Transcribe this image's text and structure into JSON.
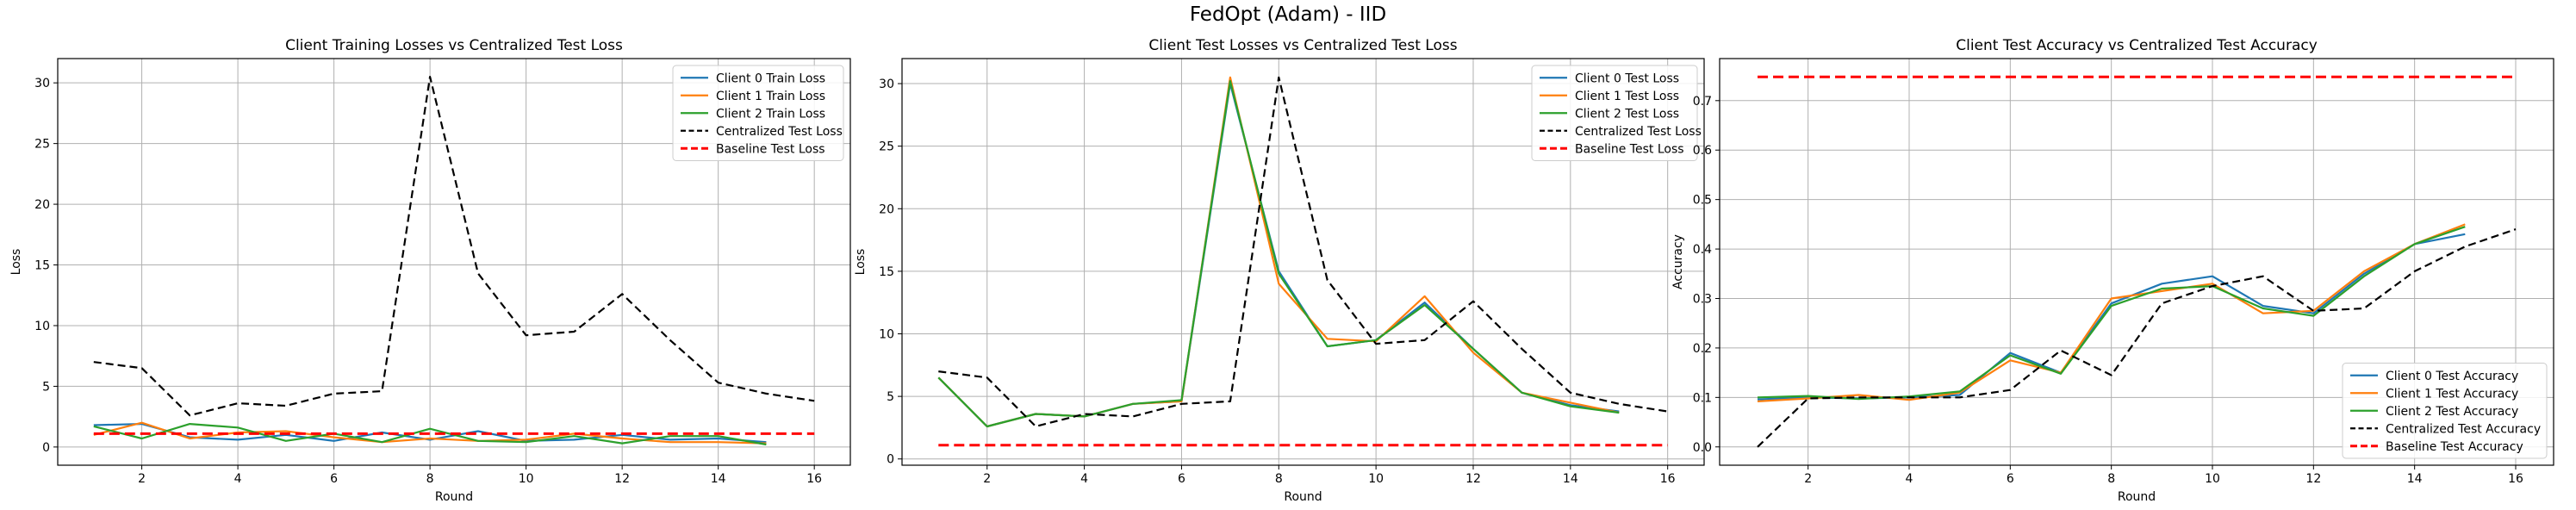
{
  "figure": {
    "suptitle": "FedOpt (Adam) - IID"
  },
  "chart_data": [
    {
      "type": "line",
      "title": "Client Training Losses vs Centralized Test Loss",
      "xlabel": "Round",
      "ylabel": "Loss",
      "xlim": [
        0.25,
        16.75
      ],
      "ylim": [
        -1.5,
        32
      ],
      "xticks": [
        2,
        4,
        6,
        8,
        10,
        12,
        14,
        16
      ],
      "yticks": [
        0,
        5,
        10,
        15,
        20,
        25,
        30
      ],
      "grid": true,
      "legend_position": "upper right",
      "series": [
        {
          "name": "Client 0 Train Loss",
          "color": "#1f77b4",
          "style": "solid",
          "x": [
            1,
            2,
            3,
            4,
            5,
            6,
            7,
            8,
            9,
            10,
            11,
            12,
            13,
            14,
            15
          ],
          "y": [
            1.8,
            1.9,
            0.8,
            0.6,
            1.0,
            0.5,
            1.2,
            0.6,
            1.3,
            0.5,
            0.6,
            1.0,
            0.6,
            0.7,
            0.4
          ]
        },
        {
          "name": "Client 1 Train Loss",
          "color": "#ff7f0e",
          "style": "solid",
          "x": [
            1,
            2,
            3,
            4,
            5,
            6,
            7,
            8,
            9,
            10,
            11,
            12,
            13,
            14,
            15
          ],
          "y": [
            1.0,
            2.0,
            0.7,
            1.2,
            1.3,
            0.8,
            0.4,
            0.7,
            0.5,
            0.6,
            1.1,
            0.7,
            0.4,
            0.4,
            0.3
          ]
        },
        {
          "name": "Client 2 Train Loss",
          "color": "#2ca02c",
          "style": "solid",
          "x": [
            1,
            2,
            3,
            4,
            5,
            6,
            7,
            8,
            9,
            10,
            11,
            12,
            13,
            14,
            15
          ],
          "y": [
            1.7,
            0.7,
            1.9,
            1.6,
            0.5,
            1.1,
            0.4,
            1.5,
            0.5,
            0.4,
            0.9,
            0.3,
            0.9,
            0.9,
            0.2
          ]
        },
        {
          "name": "Centralized Test Loss",
          "color": "#000000",
          "style": "dashed",
          "x": [
            1,
            2,
            3,
            4,
            5,
            6,
            7,
            8,
            9,
            10,
            11,
            12,
            13,
            14,
            15,
            16
          ],
          "y": [
            7.0,
            6.5,
            2.6,
            3.6,
            3.4,
            4.4,
            4.6,
            30.5,
            14.3,
            9.2,
            9.5,
            12.6,
            8.8,
            5.3,
            4.4,
            3.8
          ]
        },
        {
          "name": "Baseline Test Loss",
          "color": "#ff0000",
          "style": "dashed-bold",
          "x": [
            1,
            16
          ],
          "y": [
            1.1,
            1.1
          ]
        }
      ]
    },
    {
      "type": "line",
      "title": "Client Test Losses vs Centralized Test Loss",
      "xlabel": "Round",
      "ylabel": "Loss",
      "xlim": [
        0.25,
        16.75
      ],
      "ylim": [
        -0.5,
        32
      ],
      "xticks": [
        2,
        4,
        6,
        8,
        10,
        12,
        14,
        16
      ],
      "yticks": [
        0,
        5,
        10,
        15,
        20,
        25,
        30
      ],
      "grid": true,
      "legend_position": "upper right",
      "series": [
        {
          "name": "Client 0 Test Loss",
          "color": "#1f77b4",
          "style": "solid",
          "x": [
            1,
            2,
            3,
            4,
            5,
            6,
            7,
            8,
            9,
            10,
            11,
            12,
            13,
            14,
            15
          ],
          "y": [
            6.5,
            2.6,
            3.6,
            3.4,
            4.4,
            4.6,
            30.0,
            15.0,
            9.0,
            9.5,
            12.5,
            8.8,
            5.3,
            4.3,
            3.8
          ]
        },
        {
          "name": "Client 1 Test Loss",
          "color": "#ff7f0e",
          "style": "solid",
          "x": [
            1,
            2,
            3,
            4,
            5,
            6,
            7,
            8,
            9,
            10,
            11,
            12,
            13,
            14,
            15
          ],
          "y": [
            6.5,
            2.6,
            3.6,
            3.4,
            4.4,
            4.6,
            30.5,
            14.0,
            9.6,
            9.4,
            13.0,
            8.5,
            5.3,
            4.5,
            3.7
          ]
        },
        {
          "name": "Client 2 Test Loss",
          "color": "#2ca02c",
          "style": "solid",
          "x": [
            1,
            2,
            3,
            4,
            5,
            6,
            7,
            8,
            9,
            10,
            11,
            12,
            13,
            14,
            15
          ],
          "y": [
            6.5,
            2.6,
            3.6,
            3.4,
            4.4,
            4.7,
            30.2,
            14.8,
            9.0,
            9.5,
            12.3,
            8.8,
            5.3,
            4.2,
            3.7
          ]
        },
        {
          "name": "Centralized Test Loss",
          "color": "#000000",
          "style": "dashed",
          "x": [
            1,
            2,
            3,
            4,
            5,
            6,
            7,
            8,
            9,
            10,
            11,
            12,
            13,
            14,
            15,
            16
          ],
          "y": [
            7.0,
            6.5,
            2.6,
            3.6,
            3.4,
            4.4,
            4.6,
            30.5,
            14.3,
            9.2,
            9.5,
            12.6,
            8.8,
            5.3,
            4.4,
            3.8
          ]
        },
        {
          "name": "Baseline Test Loss",
          "color": "#ff0000",
          "style": "dashed-bold",
          "x": [
            1,
            16
          ],
          "y": [
            1.1,
            1.1
          ]
        }
      ]
    },
    {
      "type": "line",
      "title": "Client Test Accuracy vs Centralized Test Accuracy",
      "xlabel": "Round",
      "ylabel": "Accuracy",
      "xlim": [
        0.25,
        16.75
      ],
      "ylim": [
        -0.037,
        0.785
      ],
      "xticks": [
        2,
        4,
        6,
        8,
        10,
        12,
        14,
        16
      ],
      "yticks": [
        0.0,
        0.1,
        0.2,
        0.3,
        0.4,
        0.5,
        0.6,
        0.7
      ],
      "ytick_labels": [
        "0.0",
        "0.1",
        "0.2",
        "0.3",
        "0.4",
        "0.5",
        "0.6",
        "0.7"
      ],
      "grid": true,
      "legend_position": "lower right",
      "series": [
        {
          "name": "Client 0 Test Accuracy",
          "color": "#1f77b4",
          "style": "solid",
          "x": [
            1,
            2,
            3,
            4,
            5,
            6,
            7,
            8,
            9,
            10,
            11,
            12,
            13,
            14,
            15
          ],
          "y": [
            0.096,
            0.1,
            0.098,
            0.1,
            0.105,
            0.19,
            0.15,
            0.29,
            0.33,
            0.345,
            0.285,
            0.27,
            0.35,
            0.41,
            0.43
          ]
        },
        {
          "name": "Client 1 Test Accuracy",
          "color": "#ff7f0e",
          "style": "solid",
          "x": [
            1,
            2,
            3,
            4,
            5,
            6,
            7,
            8,
            9,
            10,
            11,
            12,
            13,
            14,
            15
          ],
          "y": [
            0.092,
            0.098,
            0.105,
            0.095,
            0.11,
            0.175,
            0.15,
            0.3,
            0.315,
            0.33,
            0.27,
            0.275,
            0.355,
            0.41,
            0.45
          ]
        },
        {
          "name": "Client 2 Test Accuracy",
          "color": "#2ca02c",
          "style": "solid",
          "x": [
            1,
            2,
            3,
            4,
            5,
            6,
            7,
            8,
            9,
            10,
            11,
            12,
            13,
            14,
            15
          ],
          "y": [
            0.1,
            0.103,
            0.097,
            0.102,
            0.112,
            0.185,
            0.148,
            0.285,
            0.32,
            0.325,
            0.28,
            0.265,
            0.345,
            0.41,
            0.445
          ]
        },
        {
          "name": "Centralized Test Accuracy",
          "color": "#000000",
          "style": "dashed",
          "x": [
            1,
            2,
            3,
            4,
            5,
            6,
            7,
            8,
            9,
            10,
            11,
            12,
            13,
            14,
            15,
            16
          ],
          "y": [
            0.0,
            0.098,
            0.1,
            0.1,
            0.1,
            0.115,
            0.195,
            0.145,
            0.29,
            0.325,
            0.345,
            0.275,
            0.28,
            0.355,
            0.405,
            0.44
          ]
        },
        {
          "name": "Baseline Test Accuracy",
          "color": "#ff0000",
          "style": "dashed-bold",
          "x": [
            1,
            16
          ],
          "y": [
            0.748,
            0.748
          ]
        }
      ]
    }
  ]
}
